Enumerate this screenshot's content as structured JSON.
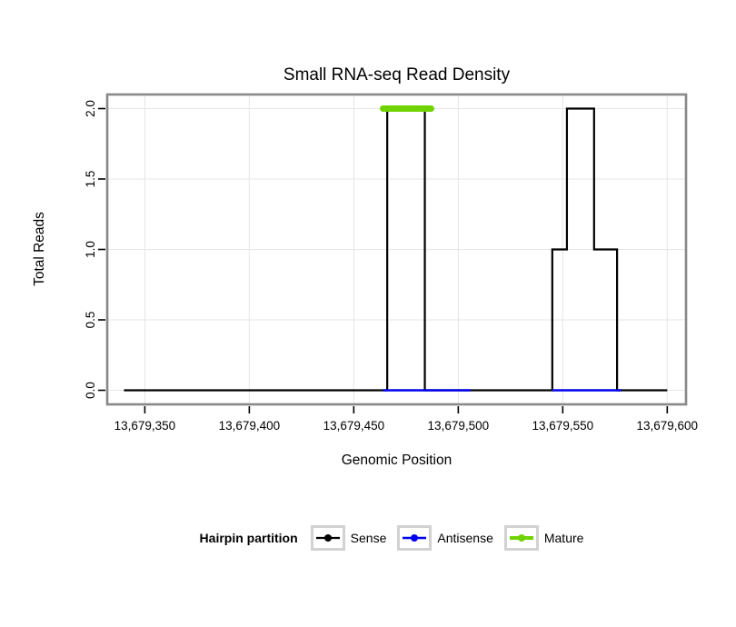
{
  "title": "Small RNA-seq Read Density",
  "axes": {
    "xlabel": "Genomic Position",
    "ylabel": "Total Reads"
  },
  "legend": {
    "title": "Hairpin partition",
    "entries": [
      {
        "label": "Sense",
        "color": "#000000"
      },
      {
        "label": "Antisense",
        "color": "#0000EE"
      },
      {
        "label": "Mature",
        "color": "#6FD300"
      }
    ]
  },
  "chart_data": {
    "type": "line",
    "title": "Small RNA-seq Read Density",
    "xlabel": "Genomic Position",
    "ylabel": "Total Reads",
    "xlim": [
      13679332,
      13679609
    ],
    "ylim": [
      -0.1,
      2.1
    ],
    "grid": true,
    "grid_color": "#e6e6e6",
    "border_color": "#888888",
    "x_ticks": [
      {
        "value": 13679350,
        "label": "13,679,350"
      },
      {
        "value": 13679400,
        "label": "13,679,400"
      },
      {
        "value": 13679450,
        "label": "13,679,450"
      },
      {
        "value": 13679500,
        "label": "13,679,500"
      },
      {
        "value": 13679550,
        "label": "13,679,550"
      },
      {
        "value": 13679600,
        "label": "13,679,600"
      }
    ],
    "y_ticks": [
      {
        "value": 0.0,
        "label": "0.0"
      },
      {
        "value": 0.5,
        "label": "0.5"
      },
      {
        "value": 1.0,
        "label": "1.0"
      },
      {
        "value": 1.5,
        "label": "1.5"
      },
      {
        "value": 2.0,
        "label": "2.0"
      }
    ],
    "series": [
      {
        "name": "Sense",
        "color": "#000000",
        "width": 2.2,
        "linecap": "butt",
        "paths": [
          [
            [
              13679340,
              0
            ],
            [
              13679466,
              0
            ],
            [
              13679466,
              2
            ],
            [
              13679484,
              2
            ],
            [
              13679484,
              0
            ],
            [
              13679545,
              0
            ],
            [
              13679545,
              1
            ],
            [
              13679552,
              1
            ],
            [
              13679552,
              2
            ],
            [
              13679565,
              2
            ],
            [
              13679565,
              1
            ],
            [
              13679576,
              1
            ],
            [
              13679576,
              0
            ],
            [
              13679600,
              0
            ]
          ]
        ]
      },
      {
        "name": "Antisense",
        "color": "#0000EE",
        "width": 2.4,
        "linecap": "butt",
        "paths": [
          [
            [
              13679464,
              0
            ],
            [
              13679506,
              0
            ]
          ],
          [
            [
              13679545,
              0
            ],
            [
              13679578,
              0
            ]
          ]
        ]
      },
      {
        "name": "Mature",
        "color": "#6FD300",
        "width": 7,
        "linecap": "round",
        "paths": [
          [
            [
              13679464,
              2
            ],
            [
              13679487,
              2
            ]
          ]
        ]
      }
    ]
  }
}
